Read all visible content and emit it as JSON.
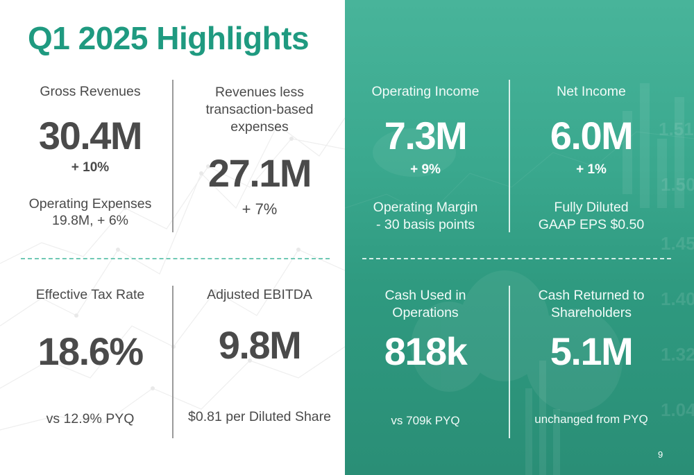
{
  "title": "Q1 2025 Highlights",
  "page_number": "9",
  "colors": {
    "accent": "#1f9a80",
    "panel": "#3aa88e",
    "dark_text": "#4a4a4a"
  },
  "metrics": {
    "gross_revenues": {
      "label": "Gross Revenues",
      "value": "30.4M",
      "change": "+ 10%",
      "sub_line1": "Operating Expenses",
      "sub_line2": "19.8M, + 6%"
    },
    "revenues_less": {
      "label_line1": "Revenues less",
      "label_line2": "transaction-based",
      "label_line3": "expenses",
      "value": "27.1M",
      "change": "+ 7%"
    },
    "operating_income": {
      "label": "Operating Income",
      "value": "7.3M",
      "change": "+ 9%",
      "sub_line1": "Operating Margin",
      "sub_line2": "- 30 basis points"
    },
    "net_income": {
      "label": "Net Income",
      "value": "6.0M",
      "change": "+ 1%",
      "sub_line1": "Fully Diluted",
      "sub_line2": "GAAP EPS $0.50"
    },
    "effective_tax_rate": {
      "label": "Effective Tax Rate",
      "value": "18.6%",
      "sub": "vs 12.9% PYQ"
    },
    "adjusted_ebitda": {
      "label": "Adjusted EBITDA",
      "value": "9.8M",
      "sub": "$0.81 per Diluted Share"
    },
    "cash_used": {
      "label_line1": "Cash Used in",
      "label_line2": "Operations",
      "value": "818k",
      "sub": "vs 709k PYQ"
    },
    "cash_returned": {
      "label_line1": "Cash Returned to",
      "label_line2": "Shareholders",
      "value": "5.1M",
      "sub": "unchanged from PYQ"
    }
  }
}
